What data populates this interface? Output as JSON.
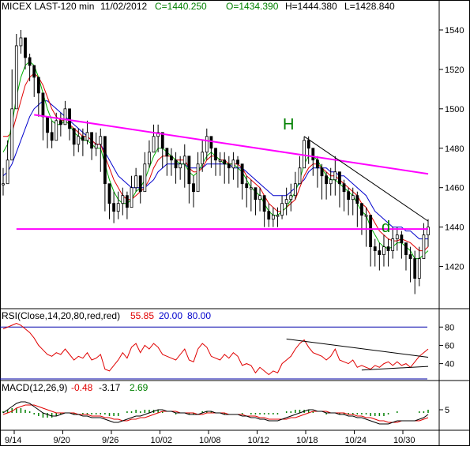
{
  "header": {
    "symbol": "MICEX LAST-120 min",
    "date": "11/02/2012",
    "close": "C=1440.250",
    "open": "O=1434.390",
    "high": "H=1444.380",
    "low": "L=1428.840"
  },
  "rsi_label": {
    "prefix": "RSI(Close,14,20,80,red,red)",
    "value": "55.85",
    "lower": "20.00",
    "upper": "80.00"
  },
  "macd_label": {
    "prefix": "MACD(12,26,9)",
    "macd": "-0.48",
    "signal": "-3.17",
    "hist": "2.69"
  },
  "annotations": {
    "head": "H",
    "point_d": "d"
  },
  "colors": {
    "candles": "#000000",
    "ma_fast": "#00b000",
    "ma_mid": "#e00000",
    "ma_slow": "#0000cc",
    "pattern_lines": "#ff00ff",
    "rsi_line": "#e00000",
    "rsi_bands": "#0000aa",
    "macd_hist": "#008000"
  },
  "chart_data": {
    "type": "line",
    "price_axis": {
      "ylim": [
        1403,
        1548
      ],
      "ticks": [
        1540,
        1520,
        1500,
        1480,
        1460,
        1440,
        1420
      ]
    },
    "rsi_axis": {
      "ylim": [
        25,
        88
      ],
      "ticks": [
        80,
        60,
        40
      ],
      "bands": [
        20,
        80
      ]
    },
    "macd_axis": {
      "ticks": [
        5
      ]
    },
    "x_tick_labels": [
      "9/14",
      "9/20",
      "9/26",
      "10/02",
      "10/08",
      "10/12",
      "10/18",
      "10/24",
      "10/30"
    ],
    "price_close": [
      1462,
      1474,
      1500,
      1532,
      1536,
      1526,
      1522,
      1516,
      1508,
      1496,
      1488,
      1484,
      1494,
      1492,
      1500,
      1490,
      1482,
      1486,
      1484,
      1488,
      1480,
      1482,
      1486,
      1462,
      1452,
      1448,
      1452,
      1456,
      1450,
      1460,
      1466,
      1458,
      1472,
      1478,
      1486,
      1488,
      1480,
      1476,
      1474,
      1470,
      1472,
      1476,
      1462,
      1458,
      1472,
      1478,
      1486,
      1480,
      1474,
      1474,
      1472,
      1470,
      1474,
      1472,
      1462,
      1460,
      1460,
      1454,
      1456,
      1448,
      1444,
      1446,
      1446,
      1452,
      1454,
      1456,
      1462,
      1470,
      1484,
      1480,
      1474,
      1470,
      1466,
      1462,
      1464,
      1468,
      1462,
      1458,
      1454,
      1456,
      1452,
      1446,
      1446,
      1430,
      1428,
      1426,
      1430,
      1428,
      1434,
      1436,
      1432,
      1426,
      1424,
      1414,
      1424,
      1436,
      1440
    ],
    "price_high": [
      1470,
      1484,
      1520,
      1538,
      1540,
      1532,
      1528,
      1522,
      1514,
      1504,
      1494,
      1494,
      1498,
      1498,
      1504,
      1496,
      1490,
      1490,
      1490,
      1494,
      1486,
      1488,
      1490,
      1472,
      1460,
      1458,
      1458,
      1460,
      1458,
      1466,
      1470,
      1466,
      1478,
      1484,
      1492,
      1492,
      1486,
      1480,
      1480,
      1478,
      1476,
      1482,
      1470,
      1466,
      1478,
      1484,
      1490,
      1486,
      1480,
      1478,
      1478,
      1476,
      1478,
      1476,
      1468,
      1466,
      1464,
      1460,
      1460,
      1454,
      1452,
      1450,
      1450,
      1456,
      1460,
      1462,
      1468,
      1476,
      1486,
      1486,
      1480,
      1476,
      1472,
      1468,
      1470,
      1476,
      1468,
      1464,
      1460,
      1460,
      1458,
      1452,
      1450,
      1440,
      1434,
      1432,
      1436,
      1434,
      1440,
      1440,
      1438,
      1432,
      1430,
      1428,
      1430,
      1442,
      1444
    ],
    "price_low": [
      1456,
      1468,
      1496,
      1520,
      1528,
      1520,
      1514,
      1506,
      1496,
      1484,
      1480,
      1480,
      1486,
      1486,
      1492,
      1484,
      1476,
      1478,
      1476,
      1482,
      1474,
      1476,
      1468,
      1448,
      1444,
      1442,
      1444,
      1446,
      1444,
      1452,
      1458,
      1452,
      1462,
      1470,
      1478,
      1478,
      1470,
      1466,
      1466,
      1462,
      1464,
      1460,
      1452,
      1450,
      1458,
      1468,
      1474,
      1470,
      1466,
      1466,
      1462,
      1462,
      1464,
      1460,
      1454,
      1450,
      1448,
      1446,
      1448,
      1440,
      1440,
      1440,
      1440,
      1444,
      1446,
      1448,
      1454,
      1462,
      1470,
      1472,
      1466,
      1460,
      1454,
      1454,
      1456,
      1456,
      1450,
      1448,
      1446,
      1446,
      1440,
      1436,
      1430,
      1420,
      1420,
      1418,
      1420,
      1420,
      1424,
      1428,
      1424,
      1418,
      1412,
      1406,
      1410,
      1428,
      1430
    ],
    "ma_fast": [
      1478,
      1482,
      1492,
      1506,
      1516,
      1522,
      1524,
      1522,
      1516,
      1508,
      1500,
      1494,
      1492,
      1492,
      1494,
      1492,
      1488,
      1486,
      1484,
      1484,
      1482,
      1480,
      1480,
      1472,
      1464,
      1458,
      1454,
      1452,
      1452,
      1454,
      1458,
      1460,
      1464,
      1470,
      1476,
      1480,
      1480,
      1478,
      1476,
      1474,
      1472,
      1472,
      1468,
      1466,
      1468,
      1472,
      1476,
      1478,
      1476,
      1474,
      1472,
      1472,
      1472,
      1470,
      1468,
      1464,
      1460,
      1458,
      1456,
      1452,
      1448,
      1446,
      1446,
      1448,
      1450,
      1454,
      1458,
      1464,
      1472,
      1476,
      1476,
      1474,
      1470,
      1466,
      1464,
      1464,
      1462,
      1460,
      1458,
      1456,
      1452,
      1448,
      1446,
      1440,
      1436,
      1432,
      1430,
      1429,
      1430,
      1432,
      1432,
      1430,
      1428,
      1424,
      1424,
      1426,
      1428
    ],
    "ma_mid": [
      1486,
      1486,
      1488,
      1496,
      1504,
      1512,
      1516,
      1518,
      1516,
      1512,
      1506,
      1500,
      1496,
      1494,
      1494,
      1492,
      1490,
      1488,
      1486,
      1486,
      1484,
      1482,
      1482,
      1476,
      1470,
      1464,
      1460,
      1456,
      1454,
      1454,
      1456,
      1458,
      1460,
      1464,
      1470,
      1474,
      1476,
      1476,
      1476,
      1474,
      1474,
      1474,
      1470,
      1468,
      1468,
      1470,
      1474,
      1476,
      1476,
      1474,
      1474,
      1472,
      1472,
      1472,
      1470,
      1466,
      1464,
      1462,
      1460,
      1456,
      1452,
      1450,
      1448,
      1448,
      1450,
      1452,
      1454,
      1460,
      1466,
      1470,
      1472,
      1472,
      1470,
      1468,
      1466,
      1466,
      1464,
      1462,
      1460,
      1458,
      1456,
      1452,
      1450,
      1446,
      1442,
      1438,
      1436,
      1434,
      1433,
      1433,
      1434,
      1433,
      1432,
      1430,
      1428,
      1428,
      1430
    ],
    "ma_slow": [
      1466,
      1468,
      1472,
      1478,
      1484,
      1490,
      1496,
      1500,
      1502,
      1504,
      1504,
      1502,
      1500,
      1498,
      1496,
      1494,
      1492,
      1490,
      1488,
      1486,
      1484,
      1482,
      1482,
      1478,
      1474,
      1470,
      1466,
      1464,
      1462,
      1460,
      1460,
      1460,
      1460,
      1462,
      1464,
      1468,
      1470,
      1472,
      1472,
      1472,
      1472,
      1472,
      1470,
      1470,
      1470,
      1470,
      1472,
      1472,
      1472,
      1472,
      1472,
      1472,
      1470,
      1470,
      1470,
      1468,
      1466,
      1464,
      1462,
      1460,
      1458,
      1456,
      1456,
      1456,
      1456,
      1458,
      1460,
      1462,
      1464,
      1468,
      1470,
      1470,
      1470,
      1470,
      1468,
      1468,
      1466,
      1466,
      1464,
      1462,
      1460,
      1458,
      1456,
      1452,
      1448,
      1446,
      1444,
      1442,
      1440,
      1440,
      1440,
      1438,
      1438,
      1436,
      1434,
      1434,
      1434
    ],
    "neckline": [
      [
        3,
        1439
      ],
      [
        96,
        1439
      ]
    ],
    "shoulder_trendline": [
      [
        7,
        1497
      ],
      [
        96,
        1467
      ]
    ],
    "head_trendline": [
      [
        68,
        1486
      ],
      [
        96,
        1443
      ]
    ],
    "rsi": [
      78,
      80,
      82,
      84,
      82,
      78,
      74,
      68,
      60,
      55,
      50,
      48,
      52,
      50,
      56,
      50,
      44,
      48,
      46,
      52,
      44,
      46,
      50,
      34,
      32,
      38,
      44,
      52,
      46,
      58,
      62,
      52,
      60,
      56,
      62,
      58,
      50,
      48,
      46,
      44,
      50,
      56,
      44,
      42,
      56,
      62,
      58,
      48,
      46,
      44,
      50,
      46,
      52,
      48,
      38,
      40,
      38,
      30,
      36,
      32,
      28,
      32,
      30,
      40,
      44,
      48,
      56,
      62,
      66,
      58,
      52,
      50,
      48,
      44,
      48,
      56,
      44,
      42,
      40,
      44,
      36,
      38,
      36,
      34,
      38,
      36,
      40,
      42,
      38,
      42,
      38,
      40,
      36,
      42,
      48,
      52,
      56
    ],
    "macd_line": [
      0,
      2,
      4,
      6,
      7,
      7,
      6,
      4,
      2,
      0,
      -1,
      -2,
      -2,
      -1,
      0,
      0,
      -1,
      -1,
      -2,
      -2,
      -3,
      -3,
      -3,
      -4,
      -5,
      -6,
      -6,
      -5,
      -4,
      -3,
      -2,
      -2,
      -1,
      0,
      1,
      2,
      2,
      1,
      1,
      0,
      0,
      0,
      -1,
      -1,
      -1,
      0,
      1,
      1,
      0,
      0,
      -1,
      -1,
      -1,
      -1,
      -2,
      -2,
      -3,
      -3,
      -4,
      -4,
      -5,
      -5,
      -5,
      -4,
      -3,
      -2,
      -1,
      0,
      1,
      2,
      2,
      1,
      1,
      0,
      0,
      0,
      -1,
      -1,
      -2,
      -2,
      -3,
      -3,
      -4,
      -5,
      -6,
      -7,
      -7,
      -7,
      -6,
      -5,
      -5,
      -5,
      -5,
      -5,
      -4,
      -3,
      -1
    ],
    "macd_signal": [
      -1,
      0,
      1,
      3,
      4,
      5,
      5,
      5,
      4,
      3,
      2,
      1,
      0,
      0,
      0,
      0,
      0,
      -1,
      -1,
      -1,
      -2,
      -2,
      -2,
      -3,
      -3,
      -4,
      -4,
      -5,
      -5,
      -4,
      -4,
      -3,
      -3,
      -2,
      -1,
      0,
      1,
      1,
      1,
      1,
      0,
      0,
      0,
      0,
      -1,
      -1,
      0,
      0,
      0,
      0,
      0,
      -1,
      -1,
      -1,
      -1,
      -2,
      -2,
      -2,
      -3,
      -3,
      -4,
      -4,
      -4,
      -4,
      -4,
      -3,
      -3,
      -2,
      -1,
      0,
      1,
      1,
      1,
      1,
      0,
      0,
      0,
      0,
      -1,
      -1,
      -2,
      -2,
      -3,
      -3,
      -4,
      -5,
      -5,
      -6,
      -6,
      -6,
      -5,
      -5,
      -5,
      -5,
      -5,
      -4,
      -3
    ]
  }
}
